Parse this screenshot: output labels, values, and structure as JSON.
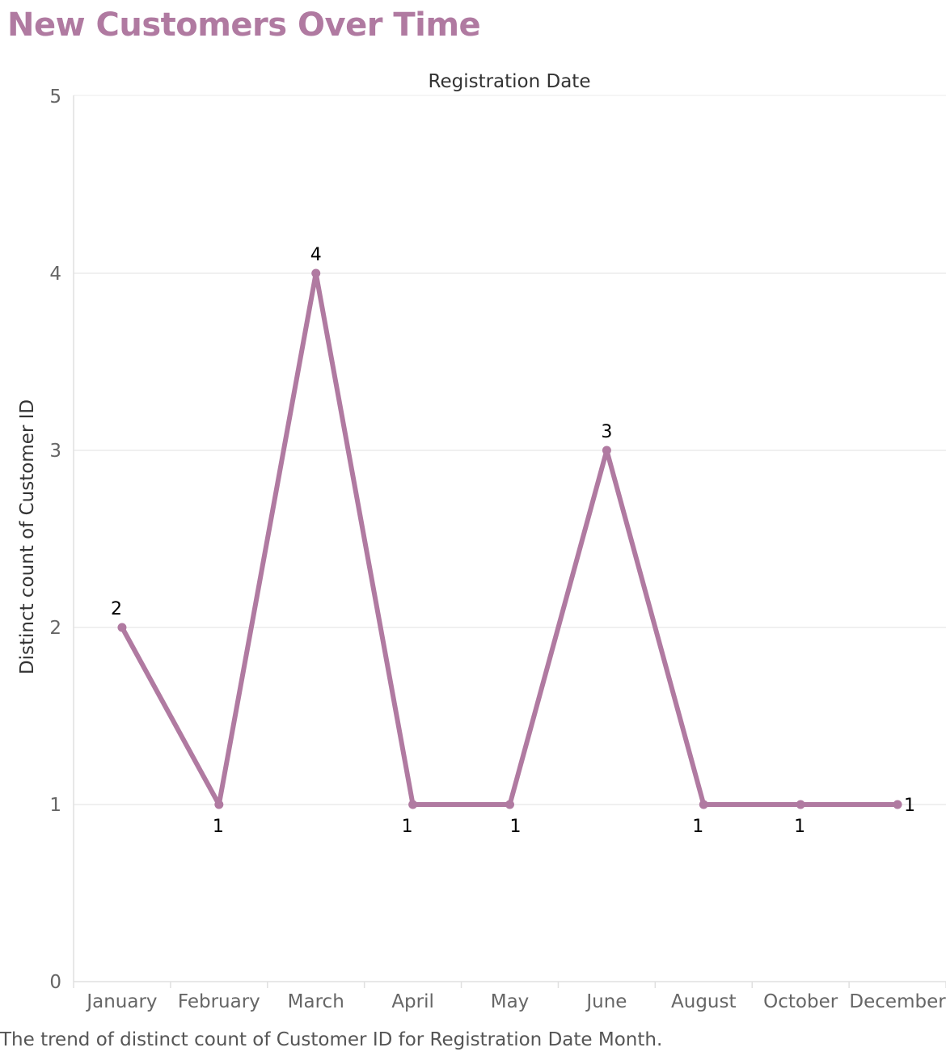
{
  "title": "New Customers Over Time",
  "caption": "The trend of distinct count of Customer ID for Registration Date Month.",
  "colors": {
    "accent": "#b07aa1",
    "grid": "#ebebeb",
    "axis": "#e0e0e0"
  },
  "chart_data": {
    "type": "line",
    "title": "New Customers Over Time",
    "xlabel": "Registration Date",
    "ylabel": "Distinct count of Customer ID",
    "categories": [
      "January",
      "February",
      "March",
      "April",
      "May",
      "June",
      "August",
      "October",
      "December"
    ],
    "values": [
      2,
      1,
      4,
      1,
      1,
      3,
      1,
      1,
      1
    ],
    "yticks": [
      0,
      1,
      2,
      3,
      4,
      5
    ],
    "ylim": [
      0,
      5
    ],
    "grid": true,
    "data_labels": true
  }
}
